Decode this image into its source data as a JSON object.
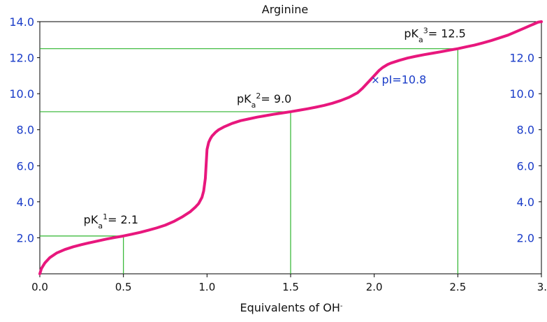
{
  "chart_data": {
    "type": "line",
    "title": "Arginine",
    "xlabel": "Equivalents of OH",
    "xlabel_superscript": "-",
    "xlim": [
      0,
      3
    ],
    "ylim": [
      0,
      14
    ],
    "x_ticks": [
      "0.0",
      "0.5",
      "1.0",
      "1.5",
      "2.0",
      "2.5",
      "3."
    ],
    "x_tick_values": [
      0,
      0.5,
      1.0,
      1.5,
      2.0,
      2.5,
      3.0
    ],
    "y_ticks_left": [
      "2.0",
      "4.0",
      "6.0",
      "8.0",
      "10.0",
      "12.0",
      "14.0"
    ],
    "y_ticks_right": [
      "2.0",
      "4.0",
      "6.0",
      "8.0",
      "10.0",
      "12.0"
    ],
    "y_tick_values_left": [
      2,
      4,
      6,
      8,
      10,
      12,
      14
    ],
    "y_tick_values_right": [
      2,
      4,
      6,
      8,
      10,
      12
    ],
    "grid": false,
    "series": [
      {
        "color": "#e8177d",
        "x": [
          0,
          0.01,
          0.03,
          0.06,
          0.1,
          0.15,
          0.2,
          0.25,
          0.3,
          0.35,
          0.4,
          0.45,
          0.5,
          0.55,
          0.6,
          0.65,
          0.7,
          0.75,
          0.8,
          0.85,
          0.9,
          0.93,
          0.95,
          0.97,
          0.98,
          0.99,
          1.0,
          1.01,
          1.02,
          1.03,
          1.05,
          1.07,
          1.1,
          1.15,
          1.2,
          1.25,
          1.3,
          1.35,
          1.4,
          1.45,
          1.5,
          1.55,
          1.6,
          1.65,
          1.7,
          1.75,
          1.8,
          1.85,
          1.9,
          1.93,
          1.95,
          1.97,
          2.0,
          2.03,
          2.05,
          2.08,
          2.1,
          2.15,
          2.2,
          2.25,
          2.3,
          2.35,
          2.4,
          2.45,
          2.5,
          2.55,
          2.6,
          2.65,
          2.7,
          2.75,
          2.8,
          2.85,
          2.9,
          2.95,
          2.98,
          3.0
        ],
        "y": [
          0.0,
          0.3,
          0.6,
          0.9,
          1.15,
          1.35,
          1.5,
          1.62,
          1.73,
          1.83,
          1.93,
          2.02,
          2.1,
          2.2,
          2.3,
          2.42,
          2.55,
          2.7,
          2.9,
          3.15,
          3.45,
          3.7,
          3.9,
          4.25,
          4.6,
          5.3,
          6.9,
          7.3,
          7.5,
          7.65,
          7.85,
          8.0,
          8.15,
          8.35,
          8.5,
          8.6,
          8.7,
          8.78,
          8.86,
          8.93,
          9.0,
          9.08,
          9.16,
          9.25,
          9.35,
          9.47,
          9.62,
          9.8,
          10.05,
          10.3,
          10.5,
          10.7,
          11.0,
          11.3,
          11.45,
          11.62,
          11.7,
          11.85,
          11.98,
          12.08,
          12.17,
          12.25,
          12.33,
          12.42,
          12.5,
          12.6,
          12.7,
          12.82,
          12.95,
          13.1,
          13.25,
          13.45,
          13.65,
          13.85,
          13.97,
          14.0
        ]
      }
    ],
    "reference_lines": [
      {
        "x": 0.5,
        "y": 2.1,
        "label_main": "pK",
        "label_sub": "a",
        "label_sup": "1",
        "label_rest": "= 2.1"
      },
      {
        "x": 1.5,
        "y": 9.0,
        "label_main": "pK",
        "label_sub": "a",
        "label_sup": "2",
        "label_rest": "= 9.0"
      },
      {
        "x": 2.5,
        "y": 12.5,
        "label_main": "pK",
        "label_sub": "a",
        "label_sup": "3",
        "label_rest": "= 12.5"
      }
    ],
    "pI_marker": {
      "x": 2.02,
      "y": 10.8,
      "symbol": "×",
      "label": "pI=10.8"
    },
    "colors": {
      "curve": "#e8177d",
      "reference_lines": "#2db52d",
      "tick_labels_y": "#1a3cc8",
      "pI": "#1a3cc8",
      "axis": "#000000",
      "text": "#111111"
    }
  }
}
